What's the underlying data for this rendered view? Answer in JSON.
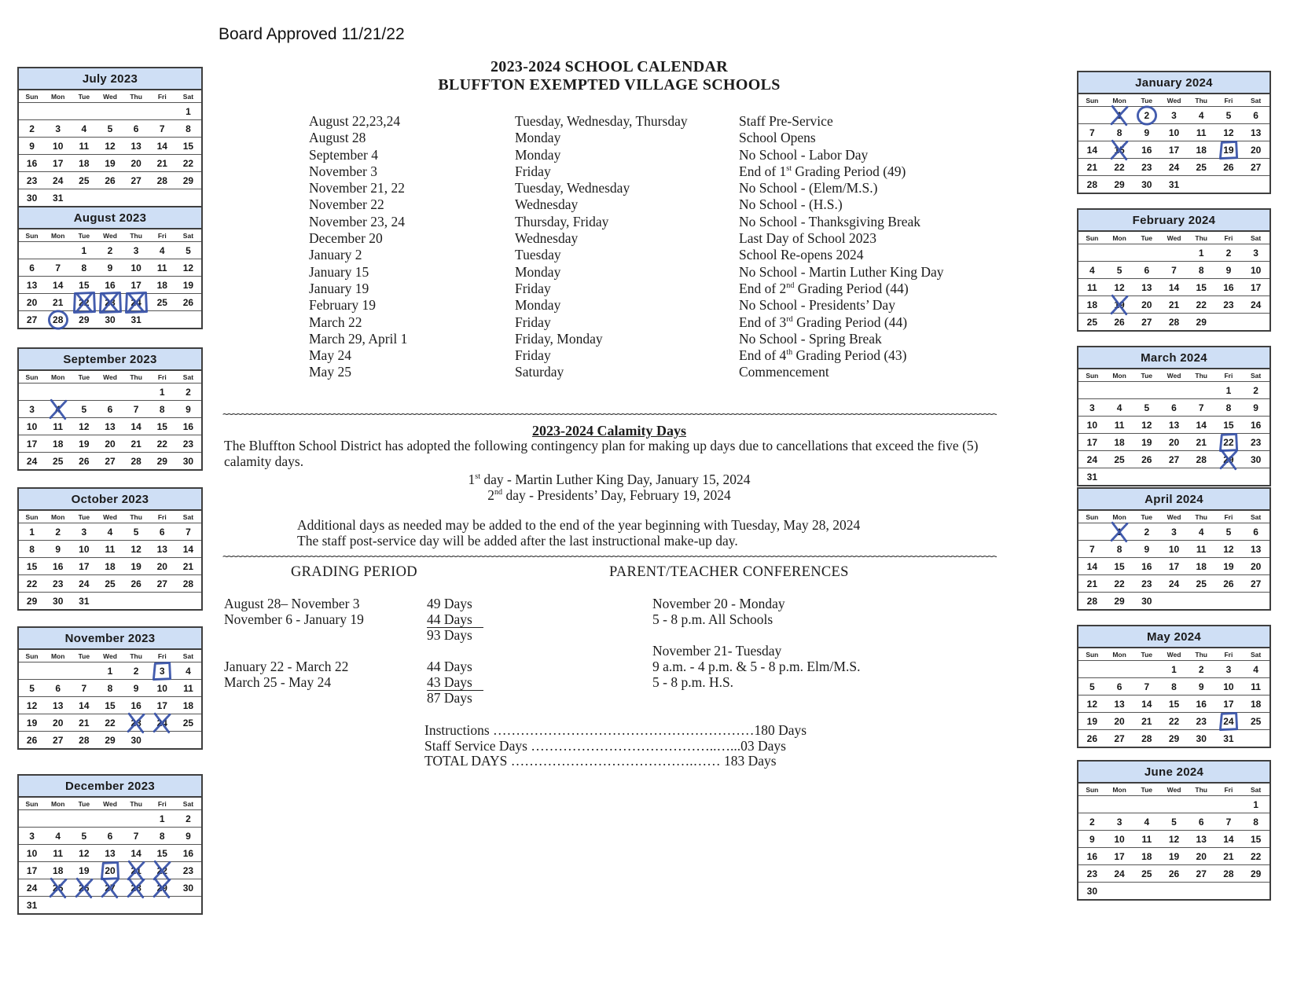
{
  "page": {
    "board_approved": "Board Approved 11/21/22",
    "title_line1": "2023-2024 SCHOOL CALENDAR",
    "title_line2": "BLUFFTON EXEMPTED VILLAGE SCHOOLS"
  },
  "events": [
    {
      "date": "August 22,23,24",
      "day": "Tuesday, Wednesday, Thursday",
      "description": "Staff Pre-Service"
    },
    {
      "date": "August 28",
      "day": "Monday",
      "description": "School Opens"
    },
    {
      "date": "September 4",
      "day": "Monday",
      "description": "No School - Labor Day"
    },
    {
      "date": "November 3",
      "day": "Friday",
      "description": "End of 1st Grading Period (49)"
    },
    {
      "date": "November 21, 22",
      "day": "Tuesday, Wednesday",
      "description": "No School - (Elem/M.S.)"
    },
    {
      "date": "November 22",
      "day": "Wednesday",
      "description": "No School - (H.S.)"
    },
    {
      "date": "November 23, 24",
      "day": "Thursday, Friday",
      "description": "No School - Thanksgiving Break"
    },
    {
      "date": "December 20",
      "day": "Wednesday",
      "description": "Last Day of School 2023"
    },
    {
      "date": "January 2",
      "day": "Tuesday",
      "description": "School Re-opens 2024"
    },
    {
      "date": "January 15",
      "day": "Monday",
      "description": "No School - Martin Luther King Day"
    },
    {
      "date": "January 19",
      "day": "Friday",
      "description": "End of 2nd Grading Period (44)"
    },
    {
      "date": "February 19",
      "day": "Monday",
      "description": "No School - Presidents’ Day"
    },
    {
      "date": "March 22",
      "day": "Friday",
      "description": "End of 3rd Grading Period (44)"
    },
    {
      "date": "March 29, April 1",
      "day": "Friday, Monday",
      "description": "No School - Spring Break"
    },
    {
      "date": "May 24",
      "day": "Friday",
      "description": "End of 4th Grading Period (43)"
    },
    {
      "date": "May 25",
      "day": "Saturday",
      "description": "Commencement"
    }
  ],
  "calamity": {
    "heading": "2023-2024 Calamity Days",
    "paragraph": "The Bluffton School District has adopted the following contingency plan for making up days due to cancellations that exceed the five (5) calamity days.",
    "day_lines": [
      "1st day - Martin Luther King  Day, January 15, 2024",
      "2nd day - Presidents’ Day, February 19, 2024"
    ],
    "additional_lines": [
      "Additional days as needed may be added to the end of the year beginning with  Tuesday, May 28,  2024",
      "The staff post-service day will be added after the last instructional make-up day."
    ]
  },
  "grading": {
    "heading": "GRADING PERIOD",
    "conferences_heading": "PARENT/TEACHER CONFERENCES",
    "rows": [
      {
        "period": "August 28– November 3",
        "days": "49 Days",
        "underline": false,
        "conference": "November 20 - Monday"
      },
      {
        "period": "November 6 - January 19",
        "days": "44 Days",
        "underline": true,
        "conference": "5 - 8 p.m. All Schools"
      },
      {
        "period": "",
        "days": "93 Days",
        "underline": false,
        "conference": ""
      },
      {
        "period": "",
        "days": "",
        "underline": false,
        "conference": "November 21- Tuesday"
      },
      {
        "period": "January 22 - March 22",
        "days": "44 Days",
        "underline": false,
        "conference": "9 a.m. - 4 p.m. & 5 - 8 p.m. Elm/M.S."
      },
      {
        "period": "March 25 -  May 24",
        "days": "43 Days",
        "underline": true,
        "conference": "5 - 8 p.m. H.S."
      },
      {
        "period": "",
        "days": "87 Days",
        "underline": false,
        "conference": ""
      }
    ],
    "totals": [
      "Instructions …………………………………………………180 Days",
      "Staff Service Days …………………………………..…...03 Days",
      "TOTAL DAYS ………………………………….…… 183 Days"
    ]
  },
  "calendar": {
    "weekday_headers": [
      "Sun",
      "Mon",
      "Tue",
      "Wed",
      "Thu",
      "Fri",
      "Sat"
    ],
    "ink_color": "#3550a8",
    "header_bg": "#cfdff5",
    "months": [
      {
        "title": "July 2023",
        "column": "left",
        "marks": [],
        "weeks": [
          [
            "",
            "",
            "",
            "",
            "",
            "",
            "1"
          ],
          [
            "2",
            "3",
            "4",
            "5",
            "6",
            "7",
            "8"
          ],
          [
            "9",
            "10",
            "11",
            "12",
            "13",
            "14",
            "15"
          ],
          [
            "16",
            "17",
            "18",
            "19",
            "20",
            "21",
            "22"
          ],
          [
            "23",
            "24",
            "25",
            "26",
            "27",
            "28",
            "29"
          ],
          [
            "30",
            "31",
            "",
            "",
            "",
            "",
            ""
          ]
        ]
      },
      {
        "title": "August 2023",
        "column": "left",
        "marks": [
          {
            "day": "22",
            "type": "boxed-x"
          },
          {
            "day": "23",
            "type": "boxed-x"
          },
          {
            "day": "24",
            "type": "boxed-x"
          },
          {
            "day": "28",
            "type": "circle"
          }
        ],
        "weeks": [
          [
            "",
            "",
            "1",
            "2",
            "3",
            "4",
            "5"
          ],
          [
            "6",
            "7",
            "8",
            "9",
            "10",
            "11",
            "12"
          ],
          [
            "13",
            "14",
            "15",
            "16",
            "17",
            "18",
            "19"
          ],
          [
            "20",
            "21",
            "22",
            "23",
            "24",
            "25",
            "26"
          ],
          [
            "27",
            "28",
            "29",
            "30",
            "31",
            "",
            ""
          ]
        ]
      },
      {
        "title": "September 2023",
        "column": "left",
        "marks": [
          {
            "day": "4",
            "type": "x"
          }
        ],
        "weeks": [
          [
            "",
            "",
            "",
            "",
            "",
            "1",
            "2"
          ],
          [
            "3",
            "4",
            "5",
            "6",
            "7",
            "8",
            "9"
          ],
          [
            "10",
            "11",
            "12",
            "13",
            "14",
            "15",
            "16"
          ],
          [
            "17",
            "18",
            "19",
            "20",
            "21",
            "22",
            "23"
          ],
          [
            "24",
            "25",
            "26",
            "27",
            "28",
            "29",
            "30"
          ]
        ]
      },
      {
        "title": "October 2023",
        "column": "left",
        "marks": [],
        "weeks": [
          [
            "1",
            "2",
            "3",
            "4",
            "5",
            "6",
            "7"
          ],
          [
            "8",
            "9",
            "10",
            "11",
            "12",
            "13",
            "14"
          ],
          [
            "15",
            "16",
            "17",
            "18",
            "19",
            "20",
            "21"
          ],
          [
            "22",
            "23",
            "24",
            "25",
            "26",
            "27",
            "28"
          ],
          [
            "29",
            "30",
            "31",
            "",
            "",
            "",
            ""
          ]
        ]
      },
      {
        "title": "November 2023",
        "column": "left",
        "marks": [
          {
            "day": "3",
            "type": "box"
          },
          {
            "day": "23",
            "type": "x"
          },
          {
            "day": "24",
            "type": "x"
          }
        ],
        "weeks": [
          [
            "",
            "",
            "",
            "1",
            "2",
            "3",
            "4"
          ],
          [
            "5",
            "6",
            "7",
            "8",
            "9",
            "10",
            "11"
          ],
          [
            "12",
            "13",
            "14",
            "15",
            "16",
            "17",
            "18"
          ],
          [
            "19",
            "20",
            "21",
            "22",
            "23",
            "24",
            "25"
          ],
          [
            "26",
            "27",
            "28",
            "29",
            "30",
            "",
            ""
          ]
        ]
      },
      {
        "title": "December 2023",
        "column": "left",
        "marks": [
          {
            "day": "20",
            "type": "box"
          },
          {
            "day": "21",
            "type": "x"
          },
          {
            "day": "22",
            "type": "x"
          },
          {
            "day": "25",
            "type": "x"
          },
          {
            "day": "26",
            "type": "x"
          },
          {
            "day": "27",
            "type": "x"
          },
          {
            "day": "28",
            "type": "x"
          },
          {
            "day": "29",
            "type": "x"
          }
        ],
        "weeks": [
          [
            "",
            "",
            "",
            "",
            "",
            "1",
            "2"
          ],
          [
            "3",
            "4",
            "5",
            "6",
            "7",
            "8",
            "9"
          ],
          [
            "10",
            "11",
            "12",
            "13",
            "14",
            "15",
            "16"
          ],
          [
            "17",
            "18",
            "19",
            "20",
            "21",
            "22",
            "23"
          ],
          [
            "24",
            "25",
            "26",
            "27",
            "28",
            "29",
            "30"
          ],
          [
            "31",
            "",
            "",
            "",
            "",
            "",
            ""
          ]
        ]
      },
      {
        "title": "January 2024",
        "column": "right",
        "marks": [
          {
            "day": "1",
            "type": "x"
          },
          {
            "day": "2",
            "type": "circle"
          },
          {
            "day": "15",
            "type": "x"
          },
          {
            "day": "19",
            "type": "box"
          }
        ],
        "weeks": [
          [
            "",
            "1",
            "2",
            "3",
            "4",
            "5",
            "6"
          ],
          [
            "7",
            "8",
            "9",
            "10",
            "11",
            "12",
            "13"
          ],
          [
            "14",
            "15",
            "16",
            "17",
            "18",
            "19",
            "20"
          ],
          [
            "21",
            "22",
            "23",
            "24",
            "25",
            "26",
            "27"
          ],
          [
            "28",
            "29",
            "30",
            "31",
            "",
            "",
            ""
          ]
        ]
      },
      {
        "title": "February 2024",
        "column": "right",
        "marks": [
          {
            "day": "19",
            "type": "x"
          }
        ],
        "weeks": [
          [
            "",
            "",
            "",
            "",
            "1",
            "2",
            "3"
          ],
          [
            "4",
            "5",
            "6",
            "7",
            "8",
            "9",
            "10"
          ],
          [
            "11",
            "12",
            "13",
            "14",
            "15",
            "16",
            "17"
          ],
          [
            "18",
            "19",
            "20",
            "21",
            "22",
            "23",
            "24"
          ],
          [
            "25",
            "26",
            "27",
            "28",
            "29",
            "",
            ""
          ]
        ]
      },
      {
        "title": "March 2024",
        "column": "right",
        "marks": [
          {
            "day": "22",
            "type": "box"
          },
          {
            "day": "29",
            "type": "x"
          }
        ],
        "weeks": [
          [
            "",
            "",
            "",
            "",
            "",
            "1",
            "2"
          ],
          [
            "3",
            "4",
            "5",
            "6",
            "7",
            "8",
            "9"
          ],
          [
            "10",
            "11",
            "12",
            "13",
            "14",
            "15",
            "16"
          ],
          [
            "17",
            "18",
            "19",
            "20",
            "21",
            "22",
            "23"
          ],
          [
            "24",
            "25",
            "26",
            "27",
            "28",
            "29",
            "30"
          ],
          [
            "31",
            "",
            "",
            "",
            "",
            "",
            ""
          ]
        ]
      },
      {
        "title": "April 2024",
        "column": "right",
        "marks": [
          {
            "day": "1",
            "type": "x"
          }
        ],
        "weeks": [
          [
            "",
            "1",
            "2",
            "3",
            "4",
            "5",
            "6"
          ],
          [
            "7",
            "8",
            "9",
            "10",
            "11",
            "12",
            "13"
          ],
          [
            "14",
            "15",
            "16",
            "17",
            "18",
            "19",
            "20"
          ],
          [
            "21",
            "22",
            "23",
            "24",
            "25",
            "26",
            "27"
          ],
          [
            "28",
            "29",
            "30",
            "",
            "",
            "",
            ""
          ]
        ]
      },
      {
        "title": "May 2024",
        "column": "right",
        "marks": [
          {
            "day": "24",
            "type": "box"
          }
        ],
        "weeks": [
          [
            "",
            "",
            "",
            "1",
            "2",
            "3",
            "4"
          ],
          [
            "5",
            "6",
            "7",
            "8",
            "9",
            "10",
            "11"
          ],
          [
            "12",
            "13",
            "14",
            "15",
            "16",
            "17",
            "18"
          ],
          [
            "19",
            "20",
            "21",
            "22",
            "23",
            "24",
            "25"
          ],
          [
            "26",
            "27",
            "28",
            "29",
            "30",
            "31",
            ""
          ]
        ]
      },
      {
        "title": "June 2024",
        "column": "right",
        "marks": [],
        "weeks": [
          [
            "",
            "",
            "",
            "",
            "",
            "",
            "1"
          ],
          [
            "2",
            "3",
            "4",
            "5",
            "6",
            "7",
            "8"
          ],
          [
            "9",
            "10",
            "11",
            "12",
            "13",
            "14",
            "15"
          ],
          [
            "16",
            "17",
            "18",
            "19",
            "20",
            "21",
            "22"
          ],
          [
            "23",
            "24",
            "25",
            "26",
            "27",
            "28",
            "29"
          ],
          [
            "30",
            "",
            "",
            "",
            "",
            "",
            ""
          ]
        ]
      }
    ]
  }
}
